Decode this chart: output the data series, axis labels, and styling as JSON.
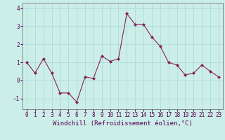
{
  "x": [
    0,
    1,
    2,
    3,
    4,
    5,
    6,
    7,
    8,
    9,
    10,
    11,
    12,
    13,
    14,
    15,
    16,
    17,
    18,
    19,
    20,
    21,
    22,
    23
  ],
  "y": [
    1.0,
    0.4,
    1.2,
    0.4,
    -0.7,
    -0.7,
    -1.2,
    0.2,
    0.1,
    1.35,
    1.05,
    1.2,
    3.7,
    3.1,
    3.1,
    2.4,
    1.9,
    1.0,
    0.85,
    0.3,
    0.4,
    0.85,
    0.5,
    0.2
  ],
  "line_color": "#882255",
  "marker": "D",
  "markersize": 2.0,
  "linewidth": 0.8,
  "bg_color": "#cceee8",
  "grid_color": "#aadddd",
  "xlabel": "Windchill (Refroidissement éolien,°C)",
  "xlabel_fontsize": 6.5,
  "tick_fontsize": 5.5,
  "ylim": [
    -1.6,
    4.3
  ],
  "xlim": [
    -0.5,
    23.5
  ],
  "yticks": [
    -1,
    0,
    1,
    2,
    3,
    4
  ],
  "xticks": [
    0,
    1,
    2,
    3,
    4,
    5,
    6,
    7,
    8,
    9,
    10,
    11,
    12,
    13,
    14,
    15,
    16,
    17,
    18,
    19,
    20,
    21,
    22,
    23
  ],
  "spine_color": "#777777",
  "label_color": "#550055"
}
